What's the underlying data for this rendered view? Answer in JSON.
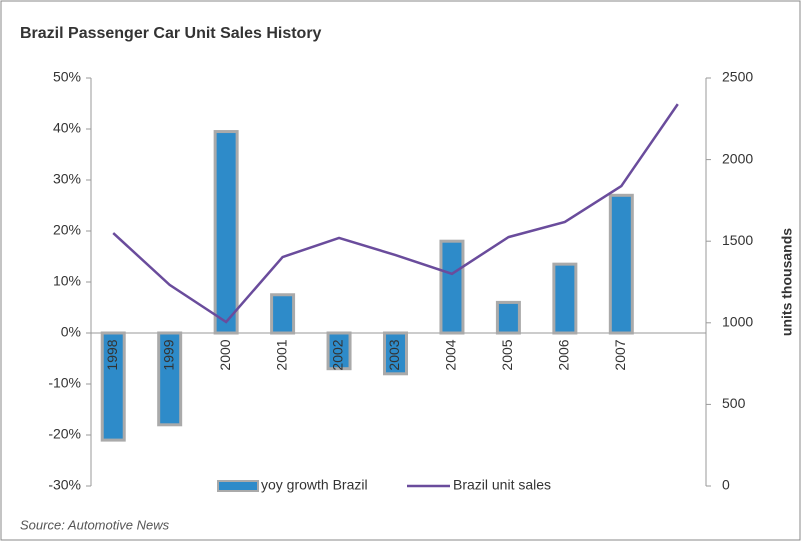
{
  "chart_data": {
    "type": "bar-line",
    "title": "Brazil Passenger Car Unit Sales History",
    "source": "Source: Automotive News",
    "y2label": "units thousands",
    "categories": [
      "1998",
      "1999",
      "2000",
      "2001",
      "2002",
      "2003",
      "2004",
      "2005",
      "2006",
      "2007",
      null
    ],
    "series": [
      {
        "name": "yoy growth Brazil",
        "color": "#2e8bc9",
        "values": [
          -21,
          -18,
          39.5,
          7.5,
          -7,
          -8,
          18,
          6,
          13.5,
          27,
          null
        ]
      },
      {
        "name": "Brazil unit sales",
        "color": "#6a4c9c",
        "axis": "y2",
        "values": [
          1550,
          1232,
          1005,
          1403,
          1520,
          1415,
          1300,
          1525,
          1618,
          1838,
          2340
        ]
      }
    ],
    "ylim": [
      -30,
      50
    ],
    "yticks": [
      {
        "value": -30,
        "label": "-30%"
      },
      {
        "value": -20,
        "label": "-20%"
      },
      {
        "value": -10,
        "label": "-10%"
      },
      {
        "value": 0,
        "label": "0%"
      },
      {
        "value": 10,
        "label": "10%"
      },
      {
        "value": 20,
        "label": "20%"
      },
      {
        "value": 30,
        "label": "30%"
      },
      {
        "value": 40,
        "label": "40%"
      },
      {
        "value": 50,
        "label": "50%"
      }
    ],
    "y2lim": [
      0,
      2500
    ],
    "y2ticks": [
      0,
      500,
      1000,
      1500,
      2000,
      2500
    ],
    "legend": "bottom"
  }
}
